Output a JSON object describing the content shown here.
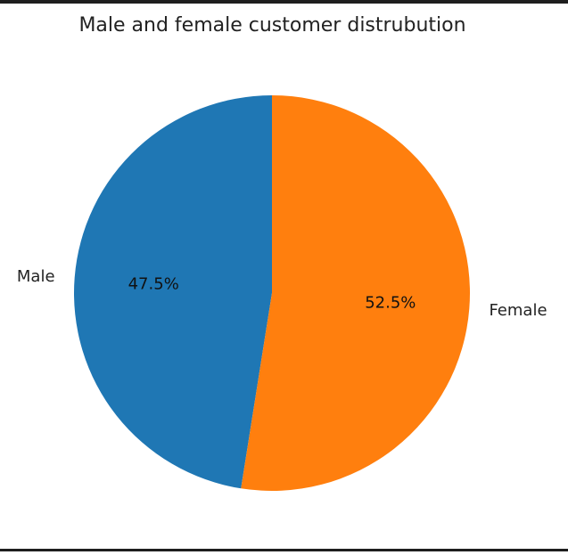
{
  "chart_data": {
    "type": "pie",
    "title": "Male and female customer distrubution",
    "start_angle_deg": 90,
    "direction": "counterclockwise",
    "slices": [
      {
        "label": "Male",
        "value": 47.5,
        "pct_text": "47.5%",
        "color": "#1f77b4"
      },
      {
        "label": "Female",
        "value": 52.5,
        "pct_text": "52.5%",
        "color": "#ff7f0e"
      }
    ]
  }
}
